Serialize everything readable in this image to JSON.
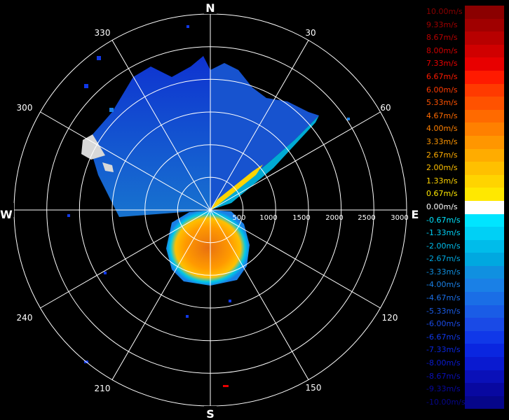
{
  "cardinals": {
    "north": "N",
    "east": "E",
    "south": "S",
    "west": "W"
  },
  "bearings": [
    "30",
    "60",
    "120",
    "150",
    "210",
    "240",
    "300",
    "330"
  ],
  "ranges": [
    "500",
    "1000",
    "1500",
    "2000",
    "2500",
    "3000"
  ],
  "legend": [
    {
      "label": "10.00m/s",
      "color": "#8b0000"
    },
    {
      "label": "9.33m/s",
      "color": "#a00000"
    },
    {
      "label": "8.67m/s",
      "color": "#b80000"
    },
    {
      "label": "8.00m/s",
      "color": "#d00000"
    },
    {
      "label": "7.33m/s",
      "color": "#e80000"
    },
    {
      "label": "6.67m/s",
      "color": "#ff1a00"
    },
    {
      "label": "6.00m/s",
      "color": "#ff3a00"
    },
    {
      "label": "5.33m/s",
      "color": "#ff5200"
    },
    {
      "label": "4.67m/s",
      "color": "#ff6a00"
    },
    {
      "label": "4.00m/s",
      "color": "#ff8000"
    },
    {
      "label": "3.33m/s",
      "color": "#ff9600"
    },
    {
      "label": "2.67m/s",
      "color": "#ffac00"
    },
    {
      "label": "2.00m/s",
      "color": "#ffc000"
    },
    {
      "label": "1.33m/s",
      "color": "#ffd400"
    },
    {
      "label": "0.67m/s",
      "color": "#ffe800"
    },
    {
      "label": "0.00m/s",
      "color": "#ffffff"
    },
    {
      "label": "-0.67m/s",
      "color": "#00e5ff"
    },
    {
      "label": "-1.33m/s",
      "color": "#00d0f5"
    },
    {
      "label": "-2.00m/s",
      "color": "#00bcea"
    },
    {
      "label": "-2.67m/s",
      "color": "#00a8e0"
    },
    {
      "label": "-3.33m/s",
      "color": "#1090e0"
    },
    {
      "label": "-4.00m/s",
      "color": "#1a80e6"
    },
    {
      "label": "-4.67m/s",
      "color": "#1a6ee6"
    },
    {
      "label": "-5.33m/s",
      "color": "#1a5ce6"
    },
    {
      "label": "-6.00m/s",
      "color": "#1a4ae6"
    },
    {
      "label": "-6.67m/s",
      "color": "#1038e8"
    },
    {
      "label": "-7.33m/s",
      "color": "#0a26e0"
    },
    {
      "label": "-8.00m/s",
      "color": "#0a1ad0"
    },
    {
      "label": "-8.67m/s",
      "color": "#0a10b8"
    },
    {
      "label": "-9.33m/s",
      "color": "#0808a0"
    },
    {
      "label": "-10.00m/s",
      "color": "#06068a"
    }
  ]
}
